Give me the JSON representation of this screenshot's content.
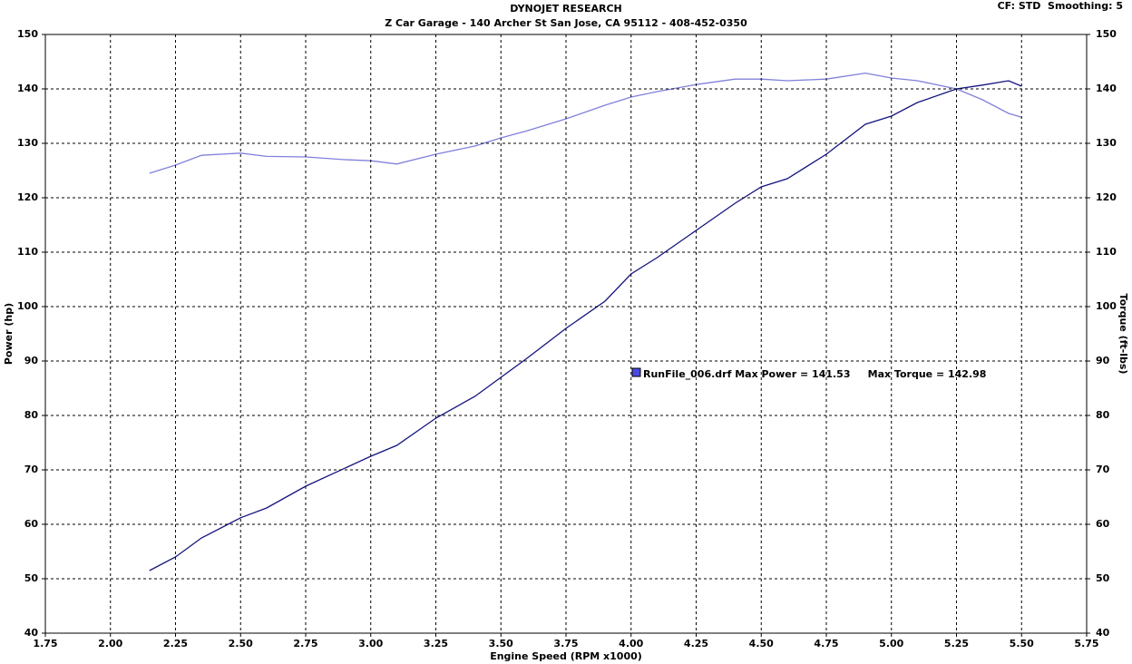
{
  "chart_data": {
    "type": "line",
    "title": "DYNOJET RESEARCH",
    "subtitle": "Z Car Garage - 140 Archer St San Jose, CA 95112 - 408-452-0350",
    "settings_text": "CF: STD  Smoothing: 5",
    "annotation": "RunFile_006.drf Max Power = 141.53     Max Torque = 142.98",
    "x_label": "Engine Speed (RPM x1000)",
    "y_label": "Power (hp)",
    "y2_label": "Torque (ft-lbs)",
    "grid": true,
    "xlim": [
      1.75,
      5.75
    ],
    "xticks": [
      {
        "value": 1.75,
        "label": "1.75"
      },
      {
        "value": 2,
        "label": "2.00"
      },
      {
        "value": 2.25,
        "label": "2.25"
      },
      {
        "value": 2.5,
        "label": "2.50"
      },
      {
        "value": 2.75,
        "label": "2.75"
      },
      {
        "value": 3,
        "label": "3.00"
      },
      {
        "value": 3.25,
        "label": "3.25"
      },
      {
        "value": 3.5,
        "label": "3.50"
      },
      {
        "value": 3.75,
        "label": "3.75"
      },
      {
        "value": 4,
        "label": "4.00"
      },
      {
        "value": 4.25,
        "label": "4.25"
      },
      {
        "value": 4.5,
        "label": "4.50"
      },
      {
        "value": 4.75,
        "label": "4.75"
      },
      {
        "value": 5,
        "label": "5.00"
      },
      {
        "value": 5.25,
        "label": "5.25"
      },
      {
        "value": 5.5,
        "label": "5.50"
      },
      {
        "value": 5.75,
        "label": "5.75"
      }
    ],
    "ylim": [
      40,
      150
    ],
    "yticks": [
      40,
      50,
      60,
      70,
      80,
      90,
      100,
      110,
      120,
      130,
      140,
      150
    ],
    "y2lim": [
      40,
      150
    ],
    "y2ticks": [
      40,
      50,
      60,
      70,
      80,
      90,
      100,
      110,
      120,
      130,
      140,
      150
    ],
    "x": [
      2.15,
      2.25,
      2.35,
      2.5,
      2.6,
      2.75,
      2.9,
      3.0,
      3.1,
      3.25,
      3.4,
      3.5,
      3.6,
      3.75,
      3.9,
      4.0,
      4.1,
      4.25,
      4.4,
      4.5,
      4.6,
      4.75,
      4.9,
      5.0,
      5.1,
      5.25,
      5.35,
      5.45,
      5.5
    ],
    "series": [
      {
        "color": "#14147f",
        "axis": "y",
        "values": [
          51.5,
          54,
          57.5,
          61.2,
          63,
          67,
          70.3,
          72.5,
          74.5,
          79.5,
          83.5,
          87,
          90.5,
          96,
          101,
          106,
          109,
          114,
          119,
          122,
          123.5,
          128,
          133.5,
          135,
          137.5,
          140,
          140.7,
          141.5,
          140.5
        ]
      },
      {
        "color": "#8080dc",
        "axis": "y2",
        "values": [
          124.5,
          126,
          127.8,
          128.2,
          127.6,
          127.5,
          127,
          126.8,
          126.2,
          128,
          129.5,
          131,
          132.3,
          134.5,
          137,
          138.5,
          139.5,
          140.8,
          141.8,
          141.8,
          141.5,
          141.8,
          142.9,
          142,
          141.5,
          140,
          138,
          135.5,
          134.8
        ]
      }
    ]
  }
}
